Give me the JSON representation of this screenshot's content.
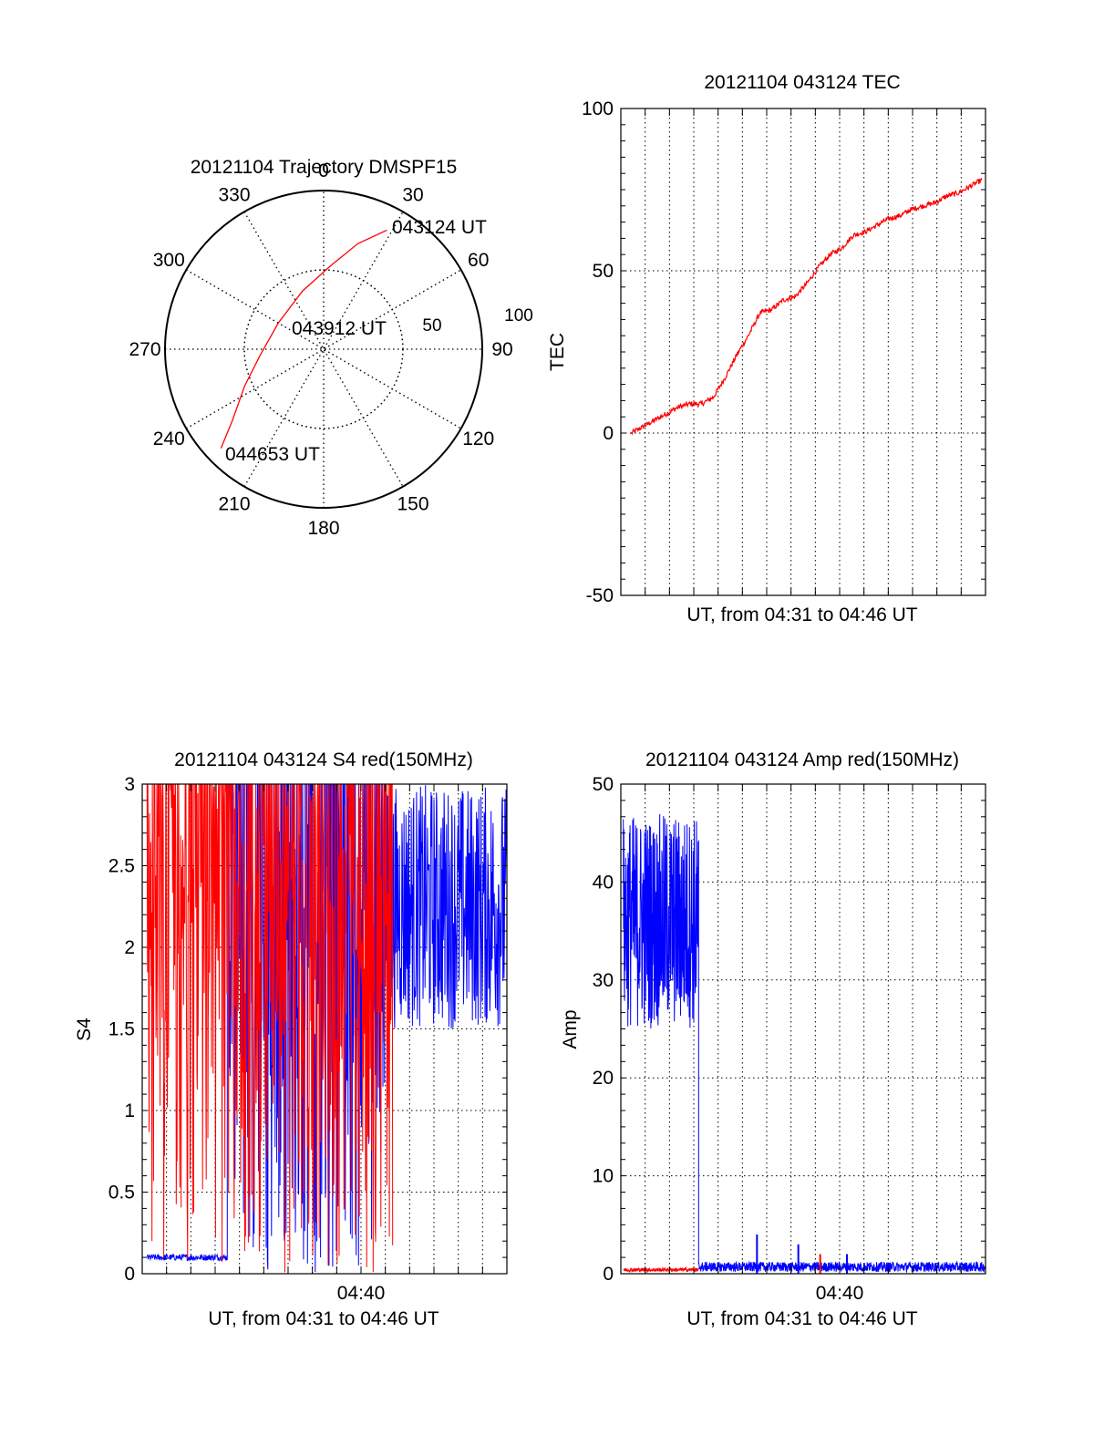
{
  "colors": {
    "red": "#ff0000",
    "blue": "#0000ff",
    "axis": "#000000",
    "grid": "#000000"
  },
  "chart_data": [
    {
      "id": "trajectory",
      "type": "polar",
      "title": "20121104 Trajectory DMSPF15",
      "angle_labels": [
        "0",
        "30",
        "60",
        "90",
        "120",
        "150",
        "180",
        "210",
        "240",
        "270",
        "300",
        "330"
      ],
      "radial_labels": [
        "50",
        "100"
      ],
      "rlim": [
        0,
        100
      ],
      "grid": true,
      "series": [
        {
          "color": "#ff0000",
          "points": [
            {
              "az": 28,
              "r": 85
            },
            {
              "az": 18,
              "r": 70
            },
            {
              "az": 5,
              "r": 53
            },
            {
              "az": 340,
              "r": 39
            },
            {
              "az": 300,
              "r": 33
            },
            {
              "az": 265,
              "r": 40
            },
            {
              "az": 245,
              "r": 55
            },
            {
              "az": 232,
              "r": 73
            },
            {
              "az": 226,
              "r": 90
            }
          ]
        }
      ],
      "annotations": [
        {
          "text": "043124 UT",
          "az": 28,
          "r": 85
        },
        {
          "text": "043912 UT",
          "az": 300,
          "r": 33
        },
        {
          "text": "044653 UT",
          "az": 226,
          "r": 90
        }
      ]
    },
    {
      "id": "tec",
      "type": "line",
      "title": "20121104 043124 TEC",
      "xlabel": "UT, from 04:31 to 04:46 UT",
      "ylabel": "TEC",
      "ylim": [
        -50,
        100
      ],
      "yticks": [
        "-50",
        "0",
        "50",
        "100"
      ],
      "xlim_min": [
        0,
        15
      ],
      "grid": true,
      "series": [
        {
          "color": "#ff0000",
          "x": [
            0,
            0.5,
            1,
            1.5,
            2,
            2.5,
            3,
            3.5,
            4,
            4.5,
            5,
            5.5,
            6,
            6.5,
            7,
            7.5,
            8,
            8.5,
            9,
            9.5,
            10,
            10.5,
            11,
            11.5,
            12,
            12.5,
            13,
            13.5,
            14,
            14.5,
            15
          ],
          "y": [
            0,
            2,
            4,
            6,
            8,
            9,
            9,
            11,
            17,
            24,
            30,
            37,
            38,
            41,
            42,
            46,
            51,
            55,
            57,
            61,
            62,
            64,
            66,
            67,
            69,
            70,
            71,
            73,
            74,
            76,
            78
          ]
        }
      ]
    },
    {
      "id": "s4",
      "type": "line",
      "title": "20121104 043124 S4 red(150MHz)",
      "xlabel": "UT, from 04:31 to 04:46 UT",
      "ylabel": "S4",
      "ylim": [
        0,
        3
      ],
      "yticks": [
        "0",
        "0.5",
        "1",
        "1.5",
        "2",
        "2.5",
        "3"
      ],
      "xticks": [
        {
          "x": 9,
          "label": "04:40"
        }
      ],
      "xlim_min": [
        0,
        15
      ],
      "grid": true,
      "series": [
        {
          "color": "#ff0000",
          "note": "Erratic S4 between 0 and 3, minute 0 to 10.3",
          "segments": [
            {
              "x0": 0.2,
              "x1": 3.6,
              "ymin": 0.05,
              "ymax": 3.0,
              "base": 2.7
            },
            {
              "x0": 3.6,
              "x1": 10.3,
              "ymin": 0.0,
              "ymax": 3.0,
              "base": 1.8
            }
          ]
        },
        {
          "color": "#0000ff",
          "note": "S4 low before 04:34.5, saturating afterwards",
          "segments": [
            {
              "x0": 0.2,
              "x1": 3.5,
              "ymin": 0.08,
              "ymax": 0.12,
              "base": 0.1
            },
            {
              "x0": 3.5,
              "x1": 10.0,
              "ymin": 0.0,
              "ymax": 3.0,
              "base": 1.8
            },
            {
              "x0": 10.0,
              "x1": 15.0,
              "ymin": 1.5,
              "ymax": 3.0,
              "base": 2.4
            }
          ]
        }
      ]
    },
    {
      "id": "amp",
      "type": "line",
      "title": "20121104 043124 Amp red(150MHz)",
      "xlabel": "UT, from 04:31 to 04:46 UT",
      "ylabel": "Amp",
      "ylim": [
        0,
        50
      ],
      "yticks": [
        "0",
        "10",
        "20",
        "30",
        "40",
        "50"
      ],
      "xticks": [
        {
          "x": 9,
          "label": "04:40"
        }
      ],
      "xlim_min": [
        0,
        15
      ],
      "grid": true,
      "series": [
        {
          "color": "#0000ff",
          "note": "Amp 25-47 from minute 0.1 to 3.2, then near 0.5",
          "segments": [
            {
              "x0": 0.1,
              "x1": 3.2,
              "ymin": 25,
              "ymax": 47,
              "base": 36
            },
            {
              "x0": 3.2,
              "x1": 15.0,
              "ymin": 0.2,
              "ymax": 1.2,
              "base": 0.5
            }
          ],
          "spikes": [
            {
              "x": 5.6,
              "y": 4
            },
            {
              "x": 7.3,
              "y": 3
            },
            {
              "x": 9.3,
              "y": 2
            }
          ]
        },
        {
          "color": "#ff0000",
          "segments": [
            {
              "x0": 0.1,
              "x1": 3.2,
              "ymin": 0.2,
              "ymax": 0.6,
              "base": 0.4
            }
          ],
          "spikes": [
            {
              "x": 8.2,
              "y": 2
            }
          ]
        }
      ]
    }
  ]
}
